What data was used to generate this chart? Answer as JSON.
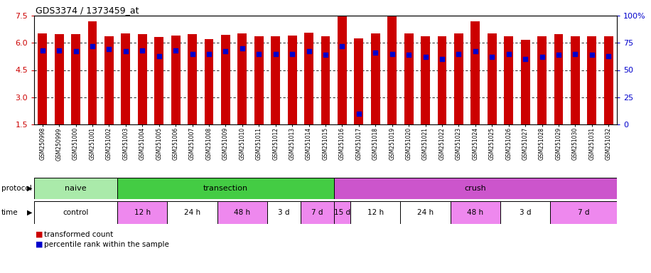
{
  "title": "GDS3374 / 1373459_at",
  "samples": [
    "GSM250998",
    "GSM250999",
    "GSM251000",
    "GSM251001",
    "GSM251002",
    "GSM251003",
    "GSM251004",
    "GSM251005",
    "GSM251006",
    "GSM251007",
    "GSM251008",
    "GSM251009",
    "GSM251010",
    "GSM251011",
    "GSM251012",
    "GSM251013",
    "GSM251014",
    "GSM251015",
    "GSM251016",
    "GSM251017",
    "GSM251018",
    "GSM251019",
    "GSM251020",
    "GSM251021",
    "GSM251022",
    "GSM251023",
    "GSM251024",
    "GSM251025",
    "GSM251026",
    "GSM251027",
    "GSM251028",
    "GSM251029",
    "GSM251030",
    "GSM251031",
    "GSM251032"
  ],
  "red_values": [
    6.52,
    6.5,
    6.5,
    7.2,
    6.35,
    6.52,
    6.5,
    6.32,
    6.42,
    6.5,
    6.2,
    6.45,
    6.52,
    6.35,
    6.35,
    6.42,
    6.55,
    6.35,
    7.45,
    6.25,
    6.52,
    7.45,
    6.52,
    6.35,
    6.38,
    6.52,
    7.2,
    6.52,
    6.38,
    6.15,
    6.35,
    6.48,
    6.38,
    6.38,
    6.38
  ],
  "blue_values": [
    68,
    68,
    67,
    72,
    69,
    67,
    68,
    63,
    68,
    65,
    65,
    67,
    70,
    65,
    65,
    65,
    67,
    64,
    72,
    10,
    66,
    65,
    64,
    62,
    60,
    65,
    67,
    62,
    65,
    60,
    62,
    64,
    65,
    64,
    63
  ],
  "ylim_left": [
    1.5,
    7.5
  ],
  "ylim_right": [
    0,
    100
  ],
  "yticks_left": [
    1.5,
    3.0,
    4.5,
    6.0,
    7.5
  ],
  "yticks_right": [
    0,
    25,
    50,
    75,
    100
  ],
  "bar_color": "#cc0000",
  "dot_color": "#0000cc",
  "bg_color": "#ffffff",
  "protocol_groups": [
    {
      "label": "naive",
      "start": 0,
      "end": 4,
      "color": "#aaeaaa"
    },
    {
      "label": "transection",
      "start": 5,
      "end": 17,
      "color": "#44cc44"
    },
    {
      "label": "crush",
      "start": 18,
      "end": 34,
      "color": "#cc55cc"
    }
  ],
  "time_groups": [
    {
      "label": "control",
      "start": 0,
      "end": 4,
      "color": "#ffffff"
    },
    {
      "label": "12 h",
      "start": 5,
      "end": 7,
      "color": "#ee88ee"
    },
    {
      "label": "24 h",
      "start": 8,
      "end": 10,
      "color": "#ffffff"
    },
    {
      "label": "48 h",
      "start": 11,
      "end": 13,
      "color": "#ee88ee"
    },
    {
      "label": "3 d",
      "start": 14,
      "end": 15,
      "color": "#ffffff"
    },
    {
      "label": "7 d",
      "start": 16,
      "end": 17,
      "color": "#ee88ee"
    },
    {
      "label": "15 d",
      "start": 18,
      "end": 18,
      "color": "#ee88ee"
    },
    {
      "label": "12 h",
      "start": 19,
      "end": 21,
      "color": "#ffffff"
    },
    {
      "label": "24 h",
      "start": 22,
      "end": 24,
      "color": "#ffffff"
    },
    {
      "label": "48 h",
      "start": 25,
      "end": 27,
      "color": "#ee88ee"
    },
    {
      "label": "3 d",
      "start": 28,
      "end": 30,
      "color": "#ffffff"
    },
    {
      "label": "7 d",
      "start": 31,
      "end": 34,
      "color": "#ee88ee"
    }
  ],
  "legend": [
    {
      "label": "transformed count",
      "color": "#cc0000"
    },
    {
      "label": "percentile rank within the sample",
      "color": "#0000cc"
    }
  ]
}
